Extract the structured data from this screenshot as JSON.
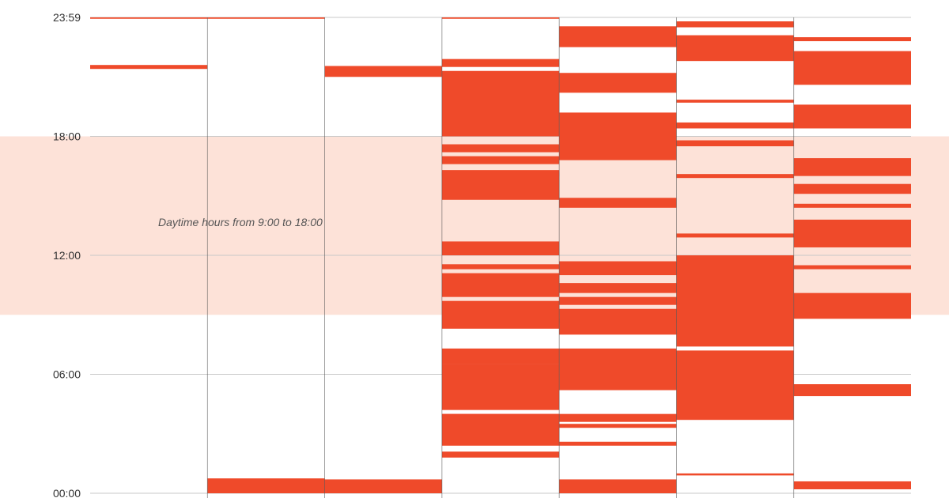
{
  "chart_data": {
    "type": "timeline",
    "y_axis": {
      "unit": "hours",
      "min": 0,
      "max": 24,
      "ticks": [
        {
          "value": 0,
          "label": "00:00"
        },
        {
          "value": 6,
          "label": "06:00"
        },
        {
          "value": 12,
          "label": "12:00"
        },
        {
          "value": 18,
          "label": "18:00"
        },
        {
          "value": 24,
          "label": "23:59"
        }
      ]
    },
    "highlight_band": {
      "from": 9,
      "to": 18,
      "label": "Daytime hours from 9:00 to 18:00",
      "color": "#fde2d8"
    },
    "bar_color": "#ef4a2a",
    "grid": true,
    "columns": [
      {
        "segments": [
          [
            23.93,
            24.0
          ],
          [
            21.4,
            21.6
          ]
        ]
      },
      {
        "segments": [
          [
            23.93,
            24.0
          ],
          [
            0.0,
            0.75
          ]
        ]
      },
      {
        "segments": [
          [
            21.0,
            21.55
          ],
          [
            0.0,
            0.7
          ]
        ]
      },
      {
        "segments": [
          [
            23.93,
            24.0
          ],
          [
            21.5,
            21.9
          ],
          [
            18.0,
            21.3
          ],
          [
            17.2,
            17.6
          ],
          [
            16.6,
            17.0
          ],
          [
            16.0,
            16.3
          ],
          [
            14.8,
            16.2
          ],
          [
            12.0,
            12.7
          ],
          [
            11.3,
            11.55
          ],
          [
            9.9,
            11.1
          ],
          [
            8.3,
            9.7
          ],
          [
            6.5,
            7.3
          ],
          [
            4.2,
            6.5
          ],
          [
            3.8,
            4.0
          ],
          [
            2.4,
            4.0
          ],
          [
            1.8,
            2.1
          ]
        ]
      },
      {
        "segments": [
          [
            22.5,
            23.55
          ],
          [
            20.2,
            21.2
          ],
          [
            16.8,
            19.2
          ],
          [
            14.4,
            14.9
          ],
          [
            11.0,
            11.7
          ],
          [
            10.1,
            10.6
          ],
          [
            9.5,
            9.9
          ],
          [
            8.6,
            9.3
          ],
          [
            8.0,
            8.8
          ],
          [
            5.2,
            7.3
          ],
          [
            3.6,
            4.0
          ],
          [
            3.3,
            3.5
          ],
          [
            2.4,
            2.6
          ],
          [
            0.0,
            0.7
          ]
        ]
      },
      {
        "segments": [
          [
            23.5,
            23.8
          ],
          [
            21.8,
            23.1
          ],
          [
            19.7,
            19.85
          ],
          [
            18.4,
            18.7
          ],
          [
            17.5,
            17.8
          ],
          [
            15.9,
            16.1
          ],
          [
            12.9,
            13.1
          ],
          [
            11.9,
            12.0
          ],
          [
            7.4,
            11.9
          ],
          [
            3.7,
            7.2
          ],
          [
            0.9,
            1.0
          ]
        ]
      },
      {
        "segments": [
          [
            22.8,
            23.0
          ],
          [
            20.6,
            22.3
          ],
          [
            18.4,
            19.6
          ],
          [
            16.0,
            16.9
          ],
          [
            15.1,
            15.6
          ],
          [
            14.4,
            14.6
          ],
          [
            12.4,
            13.8
          ],
          [
            11.3,
            11.5
          ],
          [
            8.8,
            10.1
          ],
          [
            4.9,
            5.5
          ],
          [
            0.2,
            0.6
          ]
        ]
      }
    ]
  }
}
